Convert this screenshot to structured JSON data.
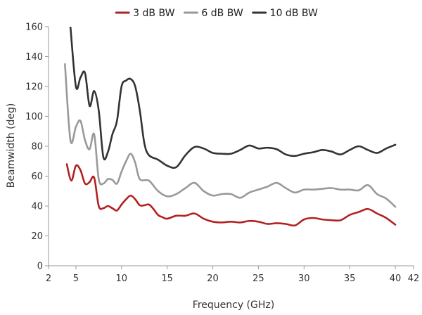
{
  "chart_data": {
    "type": "line",
    "title": "",
    "xlabel": "Frequency (GHz)",
    "ylabel": "Beamwidth (deg)",
    "xlim": [
      2,
      42
    ],
    "ylim": [
      0,
      160
    ],
    "xticks": [
      2,
      5,
      10,
      15,
      20,
      25,
      30,
      35,
      40,
      42
    ],
    "yticks": [
      0,
      20,
      40,
      60,
      80,
      100,
      120,
      140,
      160
    ],
    "grid": false,
    "legend": "top-center",
    "series": [
      {
        "name": "3 dB BW",
        "color": "#b22222",
        "points": [
          [
            4,
            68
          ],
          [
            4.5,
            57
          ],
          [
            5,
            67
          ],
          [
            5.5,
            64
          ],
          [
            6,
            55
          ],
          [
            6.5,
            56
          ],
          [
            7,
            59
          ],
          [
            7.5,
            40
          ],
          [
            8,
            38.5
          ],
          [
            8.5,
            40
          ],
          [
            9,
            38.5
          ],
          [
            9.5,
            37
          ],
          [
            10,
            41
          ],
          [
            10.5,
            44.5
          ],
          [
            11,
            47
          ],
          [
            11.5,
            44.5
          ],
          [
            12,
            40.5
          ],
          [
            12.5,
            40.5
          ],
          [
            13,
            41
          ],
          [
            13.5,
            38
          ],
          [
            14,
            34
          ],
          [
            14.5,
            32.5
          ],
          [
            15,
            31.5
          ],
          [
            16,
            33.5
          ],
          [
            17,
            33.5
          ],
          [
            18,
            35
          ],
          [
            19,
            31.5
          ],
          [
            20,
            29.5
          ],
          [
            21,
            29
          ],
          [
            22,
            29.5
          ],
          [
            23,
            29
          ],
          [
            24,
            30
          ],
          [
            25,
            29.5
          ],
          [
            26,
            28
          ],
          [
            27,
            28.5
          ],
          [
            28,
            28
          ],
          [
            29,
            27
          ],
          [
            30,
            31
          ],
          [
            31,
            32
          ],
          [
            32,
            31
          ],
          [
            33,
            30.5
          ],
          [
            34,
            30.5
          ],
          [
            35,
            34
          ],
          [
            36,
            36
          ],
          [
            37,
            38
          ],
          [
            38,
            35
          ],
          [
            39,
            32
          ],
          [
            40,
            27.5
          ]
        ]
      },
      {
        "name": "6 dB BW",
        "color": "#999999",
        "points": [
          [
            3.8,
            135
          ],
          [
            4.4,
            84
          ],
          [
            5,
            93
          ],
          [
            5.5,
            97
          ],
          [
            6,
            84
          ],
          [
            6.5,
            78
          ],
          [
            7,
            88
          ],
          [
            7.5,
            58
          ],
          [
            8,
            55
          ],
          [
            8.5,
            58
          ],
          [
            9,
            57.5
          ],
          [
            9.5,
            55
          ],
          [
            10,
            63
          ],
          [
            10.5,
            70
          ],
          [
            11,
            75
          ],
          [
            11.5,
            69
          ],
          [
            12,
            58
          ],
          [
            13,
            57
          ],
          [
            14,
            50
          ],
          [
            15,
            46.5
          ],
          [
            16,
            48
          ],
          [
            17,
            52
          ],
          [
            18,
            55.5
          ],
          [
            19,
            50
          ],
          [
            20,
            47
          ],
          [
            21,
            48
          ],
          [
            22,
            48
          ],
          [
            23,
            45.5
          ],
          [
            24,
            49
          ],
          [
            25,
            51
          ],
          [
            26,
            53
          ],
          [
            27,
            55.5
          ],
          [
            28,
            52
          ],
          [
            29,
            49
          ],
          [
            30,
            51
          ],
          [
            31,
            51
          ],
          [
            32,
            51.5
          ],
          [
            33,
            52
          ],
          [
            34,
            51
          ],
          [
            35,
            51
          ],
          [
            36,
            50.5
          ],
          [
            37,
            54
          ],
          [
            38,
            48
          ],
          [
            39,
            45
          ],
          [
            40,
            39.5
          ]
        ]
      },
      {
        "name": "10 dB BW",
        "color": "#333333",
        "points": [
          [
            4.4,
            160
          ],
          [
            5,
            120
          ],
          [
            5.5,
            126
          ],
          [
            6,
            129
          ],
          [
            6.5,
            107
          ],
          [
            7,
            117
          ],
          [
            7.5,
            104
          ],
          [
            8,
            73
          ],
          [
            8.5,
            76
          ],
          [
            9,
            88
          ],
          [
            9.5,
            97
          ],
          [
            10,
            120
          ],
          [
            10.5,
            124
          ],
          [
            11,
            125
          ],
          [
            11.5,
            120
          ],
          [
            12,
            104
          ],
          [
            12.5,
            82
          ],
          [
            13,
            74
          ],
          [
            14,
            71
          ],
          [
            15,
            67
          ],
          [
            16,
            66
          ],
          [
            17,
            74
          ],
          [
            18,
            79.5
          ],
          [
            19,
            78.5
          ],
          [
            20,
            75.5
          ],
          [
            21,
            75
          ],
          [
            22,
            75
          ],
          [
            23,
            77.5
          ],
          [
            24,
            80.5
          ],
          [
            25,
            78.5
          ],
          [
            26,
            79
          ],
          [
            27,
            78
          ],
          [
            28,
            74.5
          ],
          [
            29,
            73.5
          ],
          [
            30,
            75
          ],
          [
            31,
            76
          ],
          [
            32,
            77.5
          ],
          [
            33,
            76.5
          ],
          [
            34,
            74.5
          ],
          [
            35,
            77.5
          ],
          [
            36,
            80
          ],
          [
            37,
            77.5
          ],
          [
            38,
            75.5
          ],
          [
            39,
            78.5
          ],
          [
            40,
            81
          ]
        ]
      }
    ]
  }
}
